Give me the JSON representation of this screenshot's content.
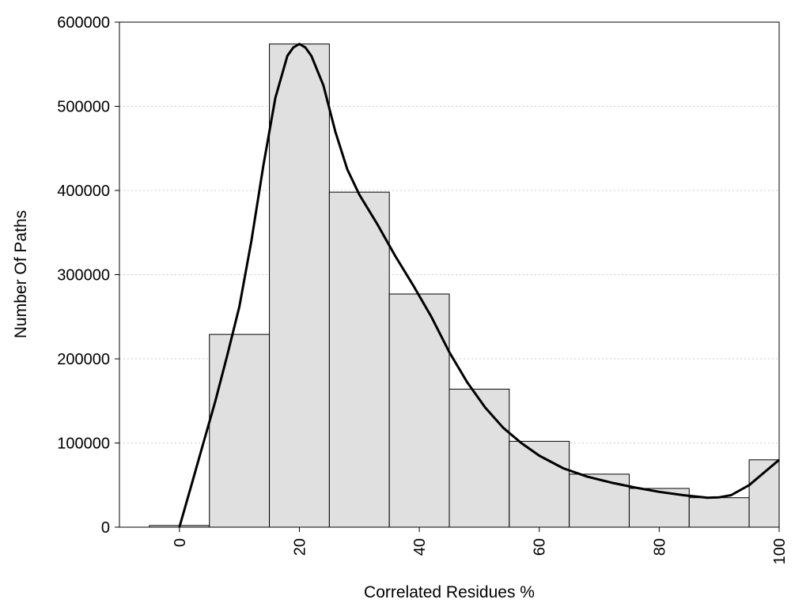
{
  "chart_data": {
    "type": "bar",
    "xlabel": "Correlated Residues %",
    "ylabel": "Number Of Paths",
    "xlim": [
      -10,
      100
    ],
    "ylim": [
      0,
      600000
    ],
    "grid": "horizontal dotted",
    "x_ticks": [
      {
        "value": 0,
        "label": "0"
      },
      {
        "value": 20,
        "label": "20"
      },
      {
        "value": 40,
        "label": "40"
      },
      {
        "value": 60,
        "label": "60"
      },
      {
        "value": 80,
        "label": "80"
      },
      {
        "value": 100,
        "label": "100"
      }
    ],
    "y_ticks": [
      {
        "value": 0,
        "label": "0"
      },
      {
        "value": 100000,
        "label": "100000"
      },
      {
        "value": 200000,
        "label": "200000"
      },
      {
        "value": 300000,
        "label": "300000"
      },
      {
        "value": 400000,
        "label": "400000"
      },
      {
        "value": 500000,
        "label": "500000"
      },
      {
        "value": 600000,
        "label": "600000"
      }
    ],
    "bin_width": 10,
    "bins": [
      {
        "center": 0,
        "value": 2000
      },
      {
        "center": 10,
        "value": 229000
      },
      {
        "center": 20,
        "value": 574000
      },
      {
        "center": 30,
        "value": 398000
      },
      {
        "center": 40,
        "value": 277000
      },
      {
        "center": 50,
        "value": 164000
      },
      {
        "center": 60,
        "value": 102000
      },
      {
        "center": 70,
        "value": 63000
      },
      {
        "center": 80,
        "value": 46000
      },
      {
        "center": 90,
        "value": 35000
      },
      {
        "center": 100,
        "value": 80000
      }
    ],
    "density_curve": [
      [
        0,
        0
      ],
      [
        2,
        50000
      ],
      [
        4,
        100000
      ],
      [
        6,
        150000
      ],
      [
        8,
        205000
      ],
      [
        10,
        262000
      ],
      [
        12,
        340000
      ],
      [
        14,
        430000
      ],
      [
        16,
        510000
      ],
      [
        18,
        560000
      ],
      [
        19,
        570000
      ],
      [
        20,
        574000
      ],
      [
        21,
        570000
      ],
      [
        22,
        560000
      ],
      [
        24,
        525000
      ],
      [
        26,
        470000
      ],
      [
        28,
        425000
      ],
      [
        30,
        395000
      ],
      [
        33,
        360000
      ],
      [
        36,
        322000
      ],
      [
        39,
        287000
      ],
      [
        42,
        250000
      ],
      [
        45,
        208000
      ],
      [
        48,
        172000
      ],
      [
        51,
        142000
      ],
      [
        54,
        118000
      ],
      [
        57,
        100000
      ],
      [
        60,
        85000
      ],
      [
        64,
        70000
      ],
      [
        68,
        60000
      ],
      [
        72,
        53000
      ],
      [
        76,
        47000
      ],
      [
        80,
        42000
      ],
      [
        84,
        38000
      ],
      [
        88,
        35000
      ],
      [
        90,
        35500
      ],
      [
        92,
        38000
      ],
      [
        95,
        50000
      ],
      [
        98,
        68000
      ],
      [
        100,
        80000
      ]
    ],
    "colors": {
      "bar_fill": "#e0e0e0",
      "bar_stroke": "#000000",
      "curve": "#000000",
      "grid": "#cccccc"
    }
  }
}
